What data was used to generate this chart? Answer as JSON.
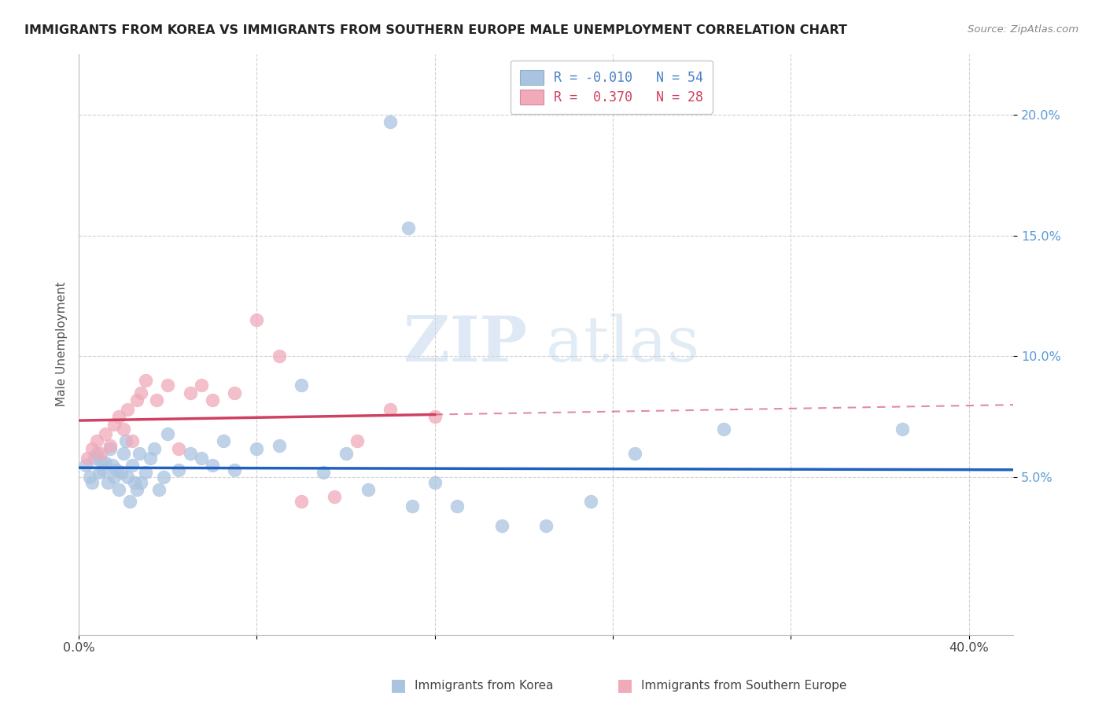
{
  "title": "IMMIGRANTS FROM KOREA VS IMMIGRANTS FROM SOUTHERN EUROPE MALE UNEMPLOYMENT CORRELATION CHART",
  "source": "Source: ZipAtlas.com",
  "ylabel": "Male Unemployment",
  "xlim": [
    0.0,
    0.42
  ],
  "ylim": [
    -0.015,
    0.225
  ],
  "yticks": [
    0.05,
    0.1,
    0.15,
    0.2
  ],
  "ytick_labels": [
    "5.0%",
    "10.0%",
    "15.0%",
    "20.0%"
  ],
  "xticks": [
    0.0,
    0.08,
    0.16,
    0.24,
    0.32,
    0.4
  ],
  "xtick_labels": [
    "0.0%",
    "",
    "",
    "",
    "",
    "40.0%"
  ],
  "blue_color": "#aac4e0",
  "pink_color": "#f0aaba",
  "trend_blue_color": "#2060c0",
  "trend_pink_color": "#d04060",
  "watermark_zip": "ZIP",
  "watermark_atlas": "atlas",
  "korea_x": [
    0.003,
    0.005,
    0.006,
    0.007,
    0.008,
    0.009,
    0.01,
    0.011,
    0.012,
    0.013,
    0.014,
    0.015,
    0.016,
    0.017,
    0.018,
    0.019,
    0.02,
    0.021,
    0.022,
    0.023,
    0.024,
    0.025,
    0.026,
    0.027,
    0.028,
    0.03,
    0.032,
    0.034,
    0.036,
    0.038,
    0.04,
    0.045,
    0.05,
    0.055,
    0.06,
    0.065,
    0.07,
    0.08,
    0.09,
    0.1,
    0.11,
    0.12,
    0.13,
    0.15,
    0.16,
    0.17,
    0.19,
    0.21,
    0.23,
    0.25,
    0.14,
    0.148,
    0.37,
    0.29
  ],
  "korea_y": [
    0.055,
    0.05,
    0.048,
    0.058,
    0.06,
    0.052,
    0.057,
    0.053,
    0.056,
    0.048,
    0.062,
    0.055,
    0.05,
    0.053,
    0.045,
    0.052,
    0.06,
    0.065,
    0.05,
    0.04,
    0.055,
    0.048,
    0.045,
    0.06,
    0.048,
    0.052,
    0.058,
    0.062,
    0.045,
    0.05,
    0.068,
    0.053,
    0.06,
    0.058,
    0.055,
    0.065,
    0.053,
    0.062,
    0.063,
    0.088,
    0.052,
    0.06,
    0.045,
    0.038,
    0.048,
    0.038,
    0.03,
    0.03,
    0.04,
    0.06,
    0.197,
    0.153,
    0.07,
    0.07
  ],
  "se_x": [
    0.004,
    0.006,
    0.008,
    0.01,
    0.012,
    0.014,
    0.016,
    0.018,
    0.02,
    0.022,
    0.024,
    0.026,
    0.028,
    0.03,
    0.035,
    0.04,
    0.045,
    0.05,
    0.055,
    0.06,
    0.07,
    0.08,
    0.09,
    0.1,
    0.115,
    0.125,
    0.14,
    0.16
  ],
  "se_y": [
    0.058,
    0.062,
    0.065,
    0.06,
    0.068,
    0.063,
    0.072,
    0.075,
    0.07,
    0.078,
    0.065,
    0.082,
    0.085,
    0.09,
    0.082,
    0.088,
    0.062,
    0.085,
    0.088,
    0.082,
    0.085,
    0.115,
    0.1,
    0.04,
    0.042,
    0.065,
    0.078,
    0.075
  ]
}
